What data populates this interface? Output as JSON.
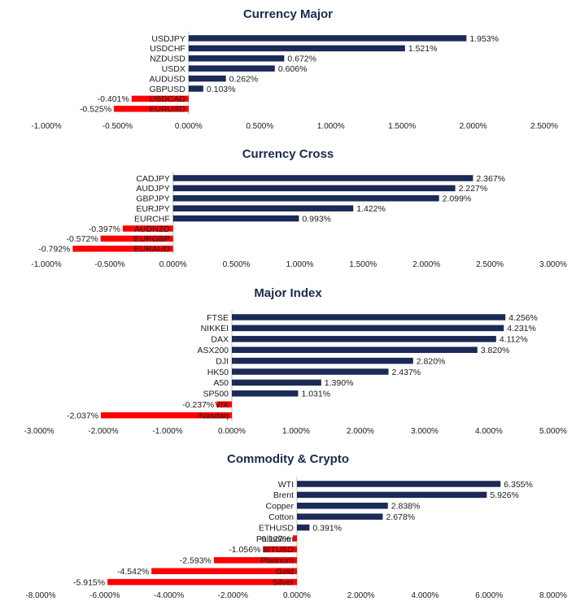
{
  "colors": {
    "positive": "#1b2a57",
    "negative": "#ff0000",
    "axis": "#bfbfbf",
    "title": "#1b2a4e"
  },
  "chart_data": [
    {
      "type": "bar",
      "orientation": "horizontal",
      "title": "Currency Major",
      "categories": [
        "USDJPY",
        "USDCHF",
        "NZDUSD",
        "USDX",
        "AUDUSD",
        "GBPUSD",
        "USDCAD",
        "EURUSD"
      ],
      "values": [
        1.953,
        1.521,
        0.672,
        0.606,
        0.262,
        0.103,
        -0.401,
        -0.525
      ],
      "value_labels": [
        "1.953%",
        "1.521%",
        "0.672%",
        "0.606%",
        "0.262%",
        "0.103%",
        "-0.401%",
        "-0.525%"
      ],
      "xlim": [
        -1.0,
        2.5
      ],
      "ticks": [
        -1.0,
        -0.5,
        0.0,
        0.5,
        1.0,
        1.5,
        2.0,
        2.5
      ],
      "tick_labels": [
        "-1.000%",
        "-0.500%",
        "0.000%",
        "0.500%",
        "1.000%",
        "1.500%",
        "2.000%",
        "2.500%"
      ]
    },
    {
      "type": "bar",
      "orientation": "horizontal",
      "title": "Currency Cross",
      "categories": [
        "CADJPY",
        "AUDJPY",
        "GBPJPY",
        "EURJPY",
        "EURCHF",
        "AUDNZD",
        "EURGBP",
        "EURAUD"
      ],
      "values": [
        2.367,
        2.227,
        2.099,
        1.422,
        0.993,
        -0.397,
        -0.572,
        -0.792
      ],
      "value_labels": [
        "2.367%",
        "2.227%",
        "2.099%",
        "1.422%",
        "0.993%",
        "-0.397%",
        "-0.572%",
        "-0.792%"
      ],
      "xlim": [
        -1.0,
        3.0
      ],
      "ticks": [
        -1.0,
        -0.5,
        0.0,
        0.5,
        1.0,
        1.5,
        2.0,
        2.5,
        3.0
      ],
      "tick_labels": [
        "-1.000%",
        "-0.500%",
        "0.000%",
        "0.500%",
        "1.000%",
        "1.500%",
        "2.000%",
        "2.500%",
        "3.000%"
      ]
    },
    {
      "type": "bar",
      "orientation": "horizontal",
      "title": "Major Index",
      "categories": [
        "FTSE",
        "NIKKEI",
        "DAX",
        "ASX200",
        "DJI",
        "HK50",
        "A50",
        "SP500",
        "VIX",
        "Nasdaq"
      ],
      "values": [
        4.256,
        4.231,
        4.112,
        3.82,
        2.82,
        2.437,
        1.39,
        1.031,
        -0.237,
        -2.037
      ],
      "value_labels": [
        "4.256%",
        "4.231%",
        "4.112%",
        "3.820%",
        "2.820%",
        "2.437%",
        "1.390%",
        "1.031%",
        "-0.237%",
        "-2.037%"
      ],
      "xlim": [
        -3.0,
        5.0
      ],
      "ticks": [
        -3.0,
        -2.0,
        -1.0,
        0.0,
        1.0,
        2.0,
        3.0,
        4.0,
        5.0
      ],
      "tick_labels": [
        "-3.000%",
        "-2.000%",
        "-1.000%",
        "0.000%",
        "1.000%",
        "2.000%",
        "3.000%",
        "4.000%",
        "5.000%"
      ]
    },
    {
      "type": "bar",
      "orientation": "horizontal",
      "title": "Commodity & Crypto",
      "categories": [
        "WTI",
        "Brent",
        "Copper",
        "Cotton",
        "ETHUSD",
        "Palladium",
        "BITUSD",
        "Platinum",
        "Gold",
        "Silver"
      ],
      "values": [
        6.355,
        5.926,
        2.838,
        2.678,
        0.391,
        -0.127,
        -1.056,
        -2.593,
        -4.542,
        -5.915
      ],
      "value_labels": [
        "6.355%",
        "5.926%",
        "2.838%",
        "2.678%",
        "0.391%",
        "-0.127%",
        "-1.056%",
        "-2.593%",
        "-4.542%",
        "-5.915%"
      ],
      "xlim": [
        -8.0,
        8.0
      ],
      "ticks": [
        -8.0,
        -6.0,
        -4.0,
        -2.0,
        0.0,
        2.0,
        4.0,
        6.0,
        8.0
      ],
      "tick_labels": [
        "-8.000%",
        "-6.000%",
        "-4.000%",
        "-2.000%",
        "0.000%",
        "2.000%",
        "4.000%",
        "6.000%",
        "8.000%"
      ]
    }
  ]
}
